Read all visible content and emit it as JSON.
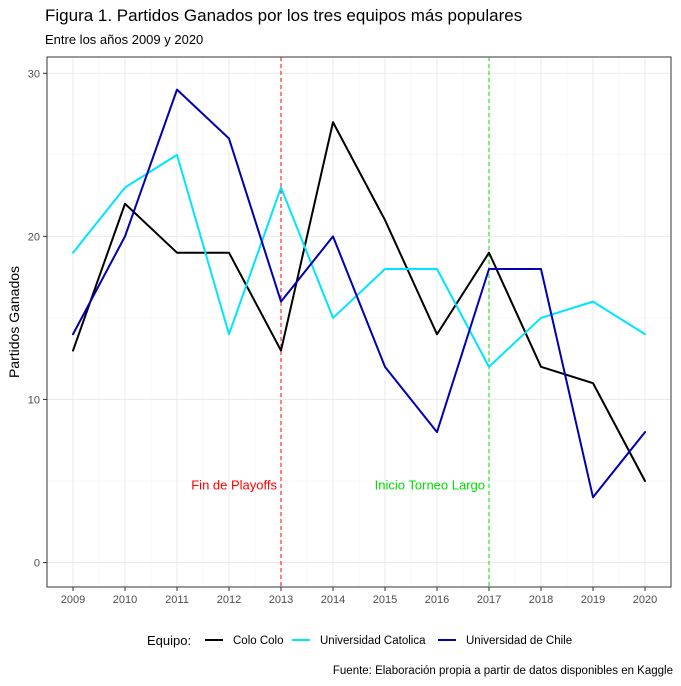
{
  "title": "Figura 1. Partidos Ganados por los tres equipos más populares",
  "subtitle": "Entre los años 2009 y 2020",
  "caption": "Fuente: Elaboración propia a partir de datos disponibles en Kaggle",
  "chart_data": {
    "type": "line",
    "x": [
      2009,
      2010,
      2011,
      2012,
      2013,
      2014,
      2015,
      2016,
      2017,
      2018,
      2019,
      2020
    ],
    "xlim": [
      2008.5,
      2020.5
    ],
    "ylim": [
      -1.5,
      31
    ],
    "yticks": [
      0,
      10,
      20,
      30
    ],
    "xlabel": "",
    "ylabel": "Partidos Ganados",
    "grid": true,
    "legend": {
      "position": "bottom",
      "title": "Equipo:"
    },
    "series": [
      {
        "name": "Colo Colo",
        "color": "#000000",
        "values": [
          13,
          22,
          19,
          19,
          13,
          27,
          21,
          14,
          19,
          12,
          11,
          5
        ]
      },
      {
        "name": "Universidad Catolica",
        "color": "#00E5FF",
        "values": [
          19,
          23,
          25,
          14,
          23,
          15,
          18,
          18,
          12,
          15,
          16,
          14
        ]
      },
      {
        "name": "Universidad de Chile",
        "color": "#0000B0",
        "values": [
          14,
          20,
          29,
          26,
          16,
          20,
          12,
          8,
          18,
          18,
          4,
          8
        ]
      }
    ],
    "vlines": [
      {
        "x": 2013,
        "label": "Fin de Playoffs",
        "color": "#FF0000",
        "label_y": 4.8,
        "label_side": "left"
      },
      {
        "x": 2017,
        "label": "Inicio Torneo Largo",
        "color": "#00DD00",
        "label_y": 4.8,
        "label_side": "left"
      }
    ]
  }
}
